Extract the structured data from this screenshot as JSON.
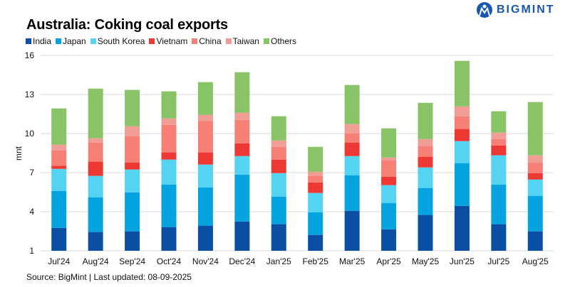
{
  "logo": {
    "text": "BIGMINT",
    "color": "#1a56b0"
  },
  "source": "Source: BigMint | Last updated: 08-09-2025",
  "chart_data": {
    "type": "bar",
    "stacked": true,
    "title": "Australia: Coking coal exports",
    "xlabel": "",
    "ylabel": "mnt",
    "ylim": [
      1,
      16
    ],
    "yticks": [
      1,
      4,
      7,
      10,
      13,
      16
    ],
    "grid": true,
    "legend_position": "top-left",
    "categories": [
      "Jul'24",
      "Aug'24",
      "Sep'24",
      "Oct'24",
      "Nov'24",
      "Dec'24",
      "Jan'25",
      "Feb'25",
      "Mar'25",
      "Apr'25",
      "May'25",
      "Jun'25",
      "Jul'25",
      "Aug'25"
    ],
    "series": [
      {
        "name": "India",
        "color": "#0a4fa3",
        "values": [
          2.76,
          2.44,
          2.49,
          2.82,
          2.93,
          3.25,
          3.04,
          2.22,
          4.07,
          2.65,
          3.75,
          4.45,
          3.04,
          2.49
        ]
      },
      {
        "name": "Japan",
        "color": "#05a3e0",
        "values": [
          2.84,
          2.67,
          3.0,
          3.27,
          2.94,
          3.6,
          2.12,
          1.74,
          2.73,
          2.02,
          2.07,
          3.28,
          3.05,
          2.73
        ]
      },
      {
        "name": "South Korea",
        "color": "#55d3f2",
        "values": [
          1.69,
          1.64,
          1.75,
          1.91,
          1.75,
          1.42,
          1.8,
          1.48,
          1.47,
          1.37,
          1.58,
          1.69,
          2.24,
          1.25
        ]
      },
      {
        "name": "Vietnam",
        "color": "#ee3833",
        "values": [
          0.24,
          1.09,
          0.54,
          0.55,
          0.93,
          0.98,
          1.04,
          0.81,
          1.04,
          0.65,
          0.82,
          0.93,
          0.76,
          0.49
        ]
      },
      {
        "name": "China",
        "color": "#f67f76",
        "values": [
          1.18,
          1.47,
          2.02,
          2.12,
          2.4,
          1.8,
          0.98,
          0.5,
          0.71,
          1.26,
          0.82,
          0.98,
          0.49,
          0.82
        ]
      },
      {
        "name": "Taiwan",
        "color": "#f09d96",
        "values": [
          0.44,
          0.33,
          0.76,
          0.49,
          0.49,
          0.55,
          0.49,
          0.32,
          0.71,
          0.21,
          0.54,
          0.76,
          0.49,
          0.55
        ]
      },
      {
        "name": "Others",
        "color": "#88c466",
        "values": [
          2.78,
          3.81,
          2.79,
          2.08,
          2.51,
          3.11,
          1.86,
          1.91,
          3.0,
          2.24,
          2.78,
          3.49,
          1.64,
          4.09
        ]
      }
    ]
  }
}
